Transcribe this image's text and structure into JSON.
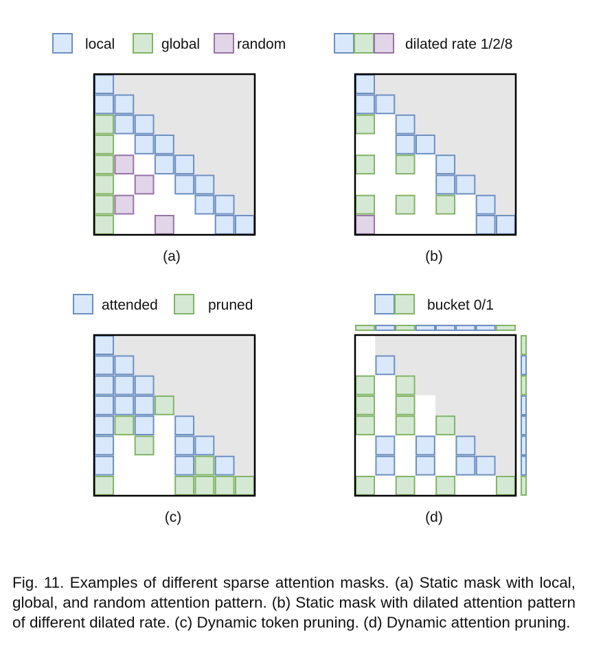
{
  "colors": {
    "local": "#dae8fc",
    "local_stroke": "#6c8ebf",
    "global": "#d5e8d4",
    "global_stroke": "#82b366",
    "random": "#e1d5e7",
    "random_stroke": "#9673a6",
    "masked": "#e6e6e6",
    "frame": "#000000"
  },
  "legends": {
    "a": {
      "items": [
        {
          "label": "local",
          "kind": "local"
        },
        {
          "label": "global",
          "kind": "global"
        },
        {
          "label": "random",
          "kind": "random"
        }
      ]
    },
    "b": {
      "label": "dilated rate 1/2/8",
      "kinds": [
        "local",
        "global",
        "random"
      ]
    },
    "c": {
      "items": [
        {
          "label": "attended",
          "kind": "local"
        },
        {
          "label": "pruned",
          "kind": "global"
        }
      ]
    },
    "d": {
      "label": "bucket 0/1",
      "kinds": [
        "local",
        "global"
      ]
    }
  },
  "panels": [
    {
      "id": "a",
      "label": "(a)",
      "masked_region": "upper-triangle",
      "cells": [
        [
          0,
          0,
          "L"
        ],
        [
          1,
          0,
          "L"
        ],
        [
          1,
          1,
          "L"
        ],
        [
          2,
          0,
          "G"
        ],
        [
          2,
          1,
          "L"
        ],
        [
          2,
          2,
          "L"
        ],
        [
          3,
          0,
          "G"
        ],
        [
          3,
          2,
          "L"
        ],
        [
          3,
          3,
          "L"
        ],
        [
          4,
          0,
          "G"
        ],
        [
          4,
          1,
          "R"
        ],
        [
          4,
          3,
          "L"
        ],
        [
          4,
          4,
          "L"
        ],
        [
          5,
          0,
          "G"
        ],
        [
          5,
          2,
          "R"
        ],
        [
          5,
          4,
          "L"
        ],
        [
          5,
          5,
          "L"
        ],
        [
          6,
          0,
          "G"
        ],
        [
          6,
          1,
          "R"
        ],
        [
          6,
          5,
          "L"
        ],
        [
          6,
          6,
          "L"
        ],
        [
          7,
          0,
          "G"
        ],
        [
          7,
          3,
          "R"
        ],
        [
          7,
          6,
          "L"
        ],
        [
          7,
          7,
          "L"
        ]
      ]
    },
    {
      "id": "b",
      "label": "(b)",
      "masked_region": "upper-triangle",
      "cells": [
        [
          0,
          0,
          "L"
        ],
        [
          1,
          0,
          "L"
        ],
        [
          1,
          1,
          "L"
        ],
        [
          2,
          0,
          "G"
        ],
        [
          2,
          2,
          "L"
        ],
        [
          3,
          2,
          "L"
        ],
        [
          3,
          3,
          "L"
        ],
        [
          4,
          0,
          "G"
        ],
        [
          4,
          2,
          "G"
        ],
        [
          4,
          4,
          "L"
        ],
        [
          5,
          4,
          "L"
        ],
        [
          5,
          5,
          "L"
        ],
        [
          6,
          0,
          "G"
        ],
        [
          6,
          2,
          "G"
        ],
        [
          6,
          4,
          "G"
        ],
        [
          6,
          6,
          "L"
        ],
        [
          7,
          0,
          "R"
        ],
        [
          7,
          6,
          "L"
        ],
        [
          7,
          7,
          "L"
        ]
      ]
    },
    {
      "id": "c",
      "label": "(c)",
      "masked_region": "upper-triangle",
      "cells": [
        [
          0,
          0,
          "L"
        ],
        [
          1,
          0,
          "L"
        ],
        [
          1,
          1,
          "L"
        ],
        [
          2,
          0,
          "L"
        ],
        [
          2,
          1,
          "L"
        ],
        [
          2,
          2,
          "L"
        ],
        [
          3,
          0,
          "L"
        ],
        [
          3,
          1,
          "L"
        ],
        [
          3,
          2,
          "L"
        ],
        [
          3,
          3,
          "G"
        ],
        [
          4,
          0,
          "L"
        ],
        [
          4,
          1,
          "G"
        ],
        [
          4,
          2,
          "L"
        ],
        [
          4,
          4,
          "L"
        ],
        [
          5,
          0,
          "L"
        ],
        [
          5,
          2,
          "G"
        ],
        [
          5,
          4,
          "L"
        ],
        [
          5,
          5,
          "L"
        ],
        [
          6,
          0,
          "L"
        ],
        [
          6,
          4,
          "L"
        ],
        [
          6,
          5,
          "G"
        ],
        [
          6,
          6,
          "L"
        ],
        [
          7,
          0,
          "G"
        ],
        [
          7,
          4,
          "G"
        ],
        [
          7,
          5,
          "G"
        ],
        [
          7,
          6,
          "G"
        ],
        [
          7,
          7,
          "G"
        ]
      ]
    },
    {
      "id": "d",
      "label": "(d)",
      "masked_region": "upper-triangle-with-gaps",
      "white_gaps": [
        [
          0,
          0
        ],
        [
          3,
          3
        ]
      ],
      "cells": [
        [
          1,
          1,
          "L"
        ],
        [
          2,
          0,
          "G"
        ],
        [
          2,
          2,
          "G"
        ],
        [
          3,
          0,
          "G"
        ],
        [
          3,
          2,
          "G"
        ],
        [
          4,
          0,
          "G"
        ],
        [
          4,
          2,
          "G"
        ],
        [
          4,
          4,
          "G"
        ],
        [
          5,
          1,
          "L"
        ],
        [
          5,
          3,
          "L"
        ],
        [
          5,
          5,
          "L"
        ],
        [
          6,
          1,
          "L"
        ],
        [
          6,
          3,
          "L"
        ],
        [
          6,
          5,
          "L"
        ],
        [
          6,
          6,
          "L"
        ],
        [
          7,
          0,
          "G"
        ],
        [
          7,
          2,
          "G"
        ],
        [
          7,
          4,
          "G"
        ],
        [
          7,
          7,
          "G"
        ]
      ],
      "buckets": [
        "G",
        "L",
        "G",
        "L",
        "L",
        "L",
        "L",
        "G"
      ]
    }
  ],
  "caption": "Fig. 11. Examples of different sparse attention masks. (a) Static mask with local, global, and random attention pattern. (b) Static mask with dilated attention pattern of different dilated rate. (c) Dynamic token pruning. (d) Dynamic attention pruning."
}
